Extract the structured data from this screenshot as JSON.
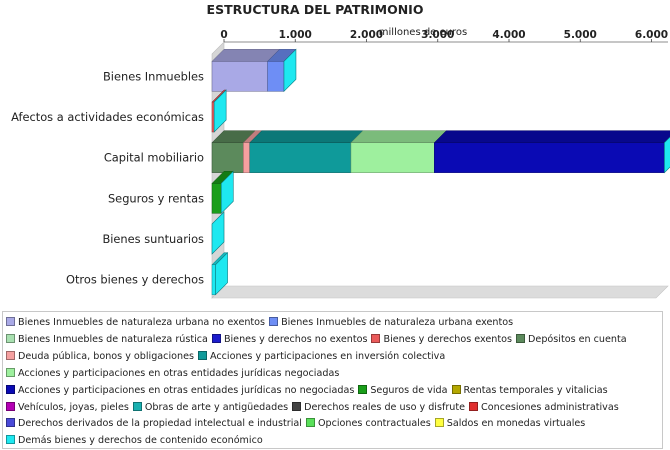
{
  "chart_data": {
    "type": "bar",
    "orientation": "horizontal",
    "stacked": true,
    "three_d": true,
    "title": "ESTRUCTURA DEL PATRIMONIO",
    "xlabel": "millones de euros",
    "ylabel": "",
    "xlim": [
      0,
      6400
    ],
    "x_ticks": [
      0,
      1000,
      2000,
      3000,
      4000,
      5000,
      6000
    ],
    "x_tick_labels": [
      "0",
      "1.000",
      "2.000",
      "3.000",
      "4.000",
      "5.000",
      "6.000"
    ],
    "grid": false,
    "legend_position": "bottom",
    "categories": [
      "Bienes Inmuebles",
      "Afectos a actividades económicas",
      "Capital mobiliario",
      "Seguros y rentas",
      "Bienes suntuarios",
      "Otros bienes y derechos"
    ],
    "series": [
      {
        "name": "Bienes Inmuebles de naturaleza urbana no exentos",
        "color": "#a9a9e6",
        "values": [
          780,
          0,
          0,
          0,
          0,
          0
        ]
      },
      {
        "name": "Bienes Inmuebles de naturaleza urbana exentos",
        "color": "#6e8ef5",
        "values": [
          230,
          0,
          0,
          0,
          0,
          0
        ]
      },
      {
        "name": "Bienes Inmuebles de naturaleza rústica",
        "color": "#a8e0b0",
        "values": [
          0,
          0,
          0,
          0,
          0,
          0
        ]
      },
      {
        "name": "Bienes y derechos no exentos",
        "color": "#1c1ccc",
        "values": [
          0,
          0,
          0,
          0,
          0,
          0
        ]
      },
      {
        "name": "Bienes y derechos exentos",
        "color": "#ea5a5a",
        "values": [
          0,
          30,
          0,
          0,
          0,
          0
        ]
      },
      {
        "name": "Depósitos en cuenta",
        "color": "#5c8a5c",
        "values": [
          0,
          0,
          440,
          0,
          0,
          0
        ]
      },
      {
        "name": "Deuda pública, bonos y obligaciones",
        "color": "#f5a0a0",
        "values": [
          0,
          0,
          90,
          0,
          0,
          0
        ]
      },
      {
        "name": "Acciones y participaciones en inversión colectiva",
        "color": "#0f9a9a",
        "values": [
          0,
          0,
          1420,
          0,
          0,
          0
        ]
      },
      {
        "name": "Acciones y participaciones en otras entidades jurídicas negociadas",
        "color": "#9ef09e",
        "values": [
          0,
          0,
          1170,
          0,
          0,
          0
        ]
      },
      {
        "name": "Acciones y participaciones en otras entidades jurídicas no negociadas",
        "color": "#0a0ab4",
        "values": [
          0,
          0,
          3230,
          0,
          0,
          0
        ]
      },
      {
        "name": "Seguros de vida",
        "color": "#1a9e1a",
        "values": [
          0,
          0,
          0,
          130,
          0,
          0
        ]
      },
      {
        "name": "Rentas temporales y vitalicias",
        "color": "#b4a800",
        "values": [
          0,
          0,
          0,
          0,
          0,
          0
        ]
      },
      {
        "name": "Vehículos, joyas, pieles",
        "color": "#b400b4",
        "values": [
          0,
          0,
          0,
          0,
          0,
          0
        ]
      },
      {
        "name": "Obras de arte y antigüedades",
        "color": "#1ab0b0",
        "values": [
          0,
          0,
          0,
          0,
          0,
          0
        ]
      },
      {
        "name": "Derechos reales de uso y disfrute",
        "color": "#444444",
        "values": [
          0,
          0,
          0,
          0,
          0,
          0
        ]
      },
      {
        "name": "Concesiones administrativas",
        "color": "#e03030",
        "values": [
          0,
          0,
          0,
          0,
          0,
          0
        ]
      },
      {
        "name": "Derechos derivados de la propiedad intelectual e industrial",
        "color": "#4a4ad8",
        "values": [
          0,
          0,
          0,
          0,
          0,
          0
        ]
      },
      {
        "name": "Opciones contractuales",
        "color": "#5ae05a",
        "values": [
          0,
          0,
          0,
          0,
          0,
          0
        ]
      },
      {
        "name": "Saldos en monedas virtuales",
        "color": "#ffff40",
        "values": [
          0,
          0,
          0,
          0,
          0,
          0
        ]
      },
      {
        "name": "Demás bienes y derechos de contenido económico",
        "color": "#1ee8f0",
        "values": [
          0,
          0,
          0,
          0,
          0,
          50
        ]
      }
    ],
    "end_caps": {
      "color": "#1ee8f0",
      "values": [
        200,
        200,
        200,
        200,
        200,
        200
      ]
    }
  }
}
